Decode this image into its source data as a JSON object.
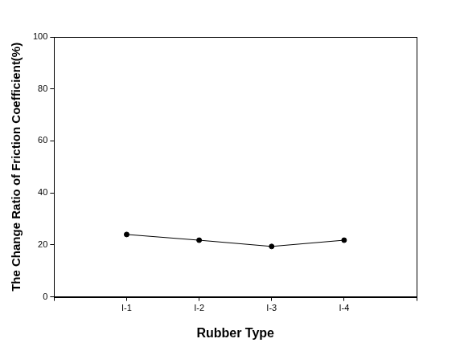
{
  "chart_data": {
    "type": "line",
    "x_label": "Rubber Type",
    "y_label": "The Change Ratio of Friction Coefficient(%)",
    "categories": [
      null,
      "I-1",
      "I-2",
      "I-3",
      "I-4",
      null
    ],
    "values": [
      null,
      24,
      21.8,
      19.4,
      21.8,
      null
    ],
    "color": "#000000",
    "marker": "circle",
    "line_style": "solid",
    "ylim": [
      0,
      100
    ],
    "yticks": [
      0,
      20,
      40,
      60,
      80,
      100
    ],
    "grid": false
  }
}
